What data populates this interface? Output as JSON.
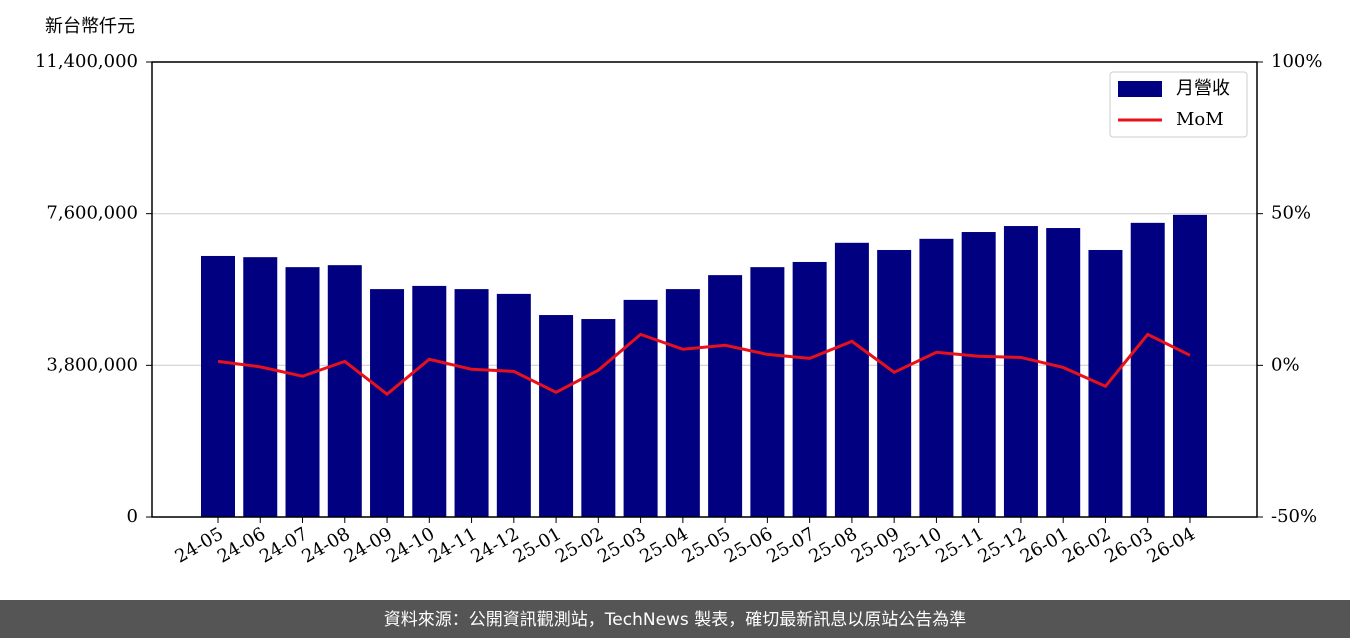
{
  "chart_data": {
    "type": "bar",
    "ylabel": "新台幣仟元",
    "categories": [
      "24-05",
      "24-06",
      "24-07",
      "24-08",
      "24-09",
      "24-10",
      "24-11",
      "24-12",
      "25-01",
      "25-02",
      "25-03",
      "25-04",
      "25-05",
      "25-06",
      "25-07",
      "25-08",
      "25-09",
      "25-10",
      "25-11",
      "25-12",
      "26-01",
      "26-02",
      "26-03",
      "26-04"
    ],
    "series": [
      {
        "name": "月營收",
        "type": "bar",
        "color": "#000080",
        "values": [
          6540000,
          6510000,
          6260000,
          6310000,
          5710000,
          5790000,
          5710000,
          5590000,
          5060000,
          4960000,
          5440000,
          5710000,
          6060000,
          6260000,
          6390000,
          6870000,
          6690000,
          6970000,
          7140000,
          7290000,
          7240000,
          6690000,
          7370000,
          7570000
        ]
      },
      {
        "name": "MoM",
        "type": "line",
        "axis": "y2",
        "color": "#e8101a",
        "values": [
          1.3,
          -0.5,
          -3.6,
          1.3,
          -9.5,
          2.0,
          -1.3,
          -2.0,
          -8.9,
          -1.6,
          10.2,
          5.3,
          6.6,
          3.6,
          2.3,
          7.9,
          -2.3,
          4.3,
          3.0,
          2.6,
          -0.7,
          -6.9,
          10.2,
          3.3
        ]
      }
    ],
    "ylim": [
      0,
      11400000
    ],
    "yticks": [
      0,
      {
        "value": 3800000,
        "label": "3,800,000"
      },
      {
        "value": 7600000,
        "label": "7,600,000"
      },
      {
        "value": 11400000,
        "label": "11,400,000"
      }
    ],
    "y2lim": [
      -50,
      100
    ],
    "y2ticks": [
      {
        "value": -50,
        "label": "-50%"
      },
      {
        "value": 0,
        "label": "0%"
      },
      {
        "value": 50,
        "label": "50%"
      },
      {
        "value": 100,
        "label": "100%"
      }
    ],
    "grid": true,
    "legend": "upper right"
  },
  "footer": "資料來源：公開資訊觀測站，TechNews 製表，確切最新訊息以原站公告為準"
}
